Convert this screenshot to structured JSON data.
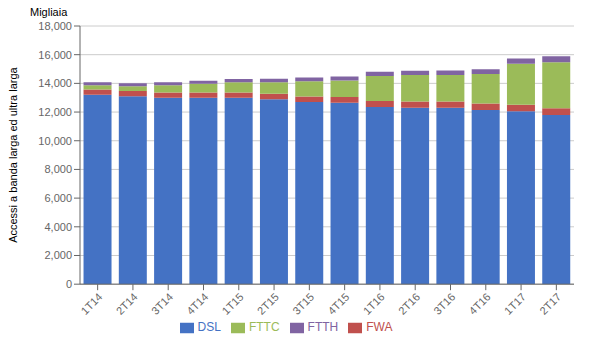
{
  "chart_data": {
    "type": "bar",
    "stacked": true,
    "ylabel": "Accessi a banda larga ed ultra larga",
    "annotations": [
      "Migliaia"
    ],
    "categories": [
      "1T14",
      "2T14",
      "3T14",
      "4T14",
      "1T15",
      "2T15",
      "3T15",
      "4T15",
      "1T16",
      "2T16",
      "3T16",
      "4T16",
      "1T17",
      "2T17"
    ],
    "series": [
      {
        "name": "DSL",
        "color": "#4472C4",
        "values": [
          13200,
          13100,
          13000,
          13000,
          13000,
          12900,
          12700,
          12650,
          12350,
          12300,
          12300,
          12150,
          12050,
          11800
        ]
      },
      {
        "name": "FWA",
        "color": "#C0504D",
        "values": [
          370,
          370,
          370,
          370,
          370,
          380,
          390,
          400,
          420,
          430,
          440,
          450,
          460,
          470
        ]
      },
      {
        "name": "FTTC",
        "color": "#9BBB59",
        "values": [
          300,
          330,
          500,
          600,
          700,
          800,
          1050,
          1150,
          1750,
          1850,
          1850,
          2050,
          2850,
          3200
        ]
      },
      {
        "name": "FTTH",
        "color": "#8064A2",
        "values": [
          200,
          210,
          215,
          220,
          230,
          250,
          270,
          280,
          295,
          305,
          315,
          330,
          380,
          420
        ]
      }
    ],
    "ylim": [
      0,
      18000
    ],
    "yticks": [
      0,
      {
        "value": 2000,
        "label": "2,000"
      },
      {
        "value": 4000,
        "label": "4,000"
      },
      {
        "value": 6000,
        "label": "6,000"
      },
      {
        "value": 8000,
        "label": "8,000"
      },
      {
        "value": 10000,
        "label": "10,000"
      },
      {
        "value": 12000,
        "label": "12,000"
      },
      {
        "value": 14000,
        "label": "14,000"
      },
      {
        "value": 16000,
        "label": "16,000"
      },
      {
        "value": 18000,
        "label": "18,000"
      }
    ],
    "grid": true,
    "legend": "bottom"
  }
}
